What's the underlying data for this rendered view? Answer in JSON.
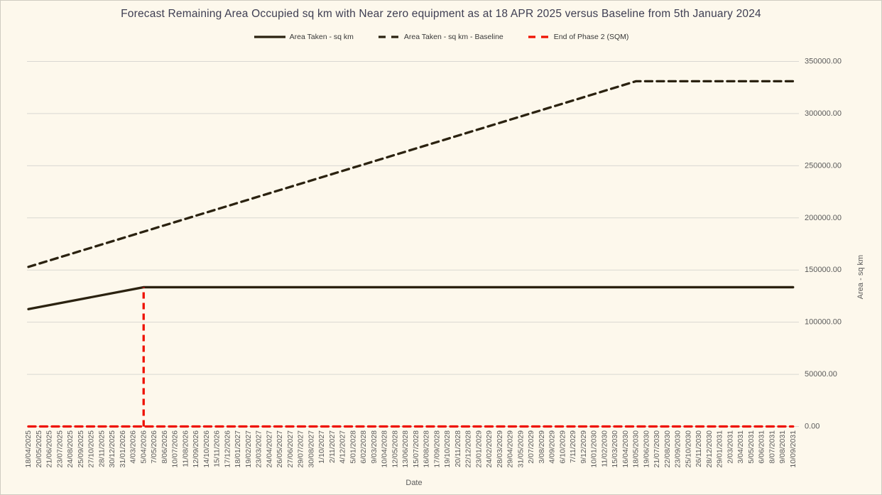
{
  "window": {
    "background": "#fdf8ec",
    "border_color": "#cfccc2"
  },
  "chart": {
    "title": "Forecast Remaining Area Occupied sq km with Near zero equipment as at 18 APR 2025 versus Baseline from 5th January 2024",
    "x_axis_title": "Date",
    "y_axis_title": "Area - sq km",
    "legend": [
      {
        "label": "Area Taken - sq km",
        "style": "solid",
        "color": "#2b2210"
      },
      {
        "label": "Area Taken - sq km - Baseline",
        "style": "dashed",
        "color": "#2b2210"
      },
      {
        "label": "End of Phase 2 (SQM)",
        "style": "dashed",
        "color": "#ee1100"
      }
    ],
    "colors": {
      "gridline": "#d9d7d2",
      "tick_text": "#5a5a5a",
      "title_text": "#3e3e52"
    }
  },
  "chart_data": {
    "type": "line",
    "title": "Forecast Remaining Area Occupied sq km with Near zero equipment as at 18 APR 2025 versus Baseline from 5th January 2024",
    "xlabel": "Date",
    "ylabel": "Area - sq km",
    "ylim": [
      0,
      350000
    ],
    "y_ticks": [
      0,
      50000,
      100000,
      150000,
      200000,
      250000,
      300000,
      350000
    ],
    "y_tick_labels": [
      "0.00",
      "50000.00",
      "100000.00",
      "150000.00",
      "200000.00",
      "250000.00",
      "300000.00",
      "350000.00"
    ],
    "grid": "horizontal",
    "legend_position": "top",
    "categories": [
      "18/04/2025",
      "20/05/2025",
      "21/06/2025",
      "23/07/2025",
      "24/08/2025",
      "25/09/2025",
      "27/10/2025",
      "28/11/2025",
      "30/12/2025",
      "31/01/2026",
      "4/03/2026",
      "5/04/2026",
      "7/05/2026",
      "8/06/2026",
      "10/07/2026",
      "11/08/2026",
      "12/09/2026",
      "14/10/2026",
      "15/11/2026",
      "17/12/2026",
      "18/01/2027",
      "19/02/2027",
      "23/03/2027",
      "24/04/2027",
      "26/05/2027",
      "27/06/2027",
      "29/07/2027",
      "30/08/2027",
      "1/10/2027",
      "2/11/2027",
      "4/12/2027",
      "5/01/2028",
      "6/02/2028",
      "9/03/2028",
      "10/04/2028",
      "12/05/2028",
      "13/06/2028",
      "15/07/2028",
      "16/08/2028",
      "17/09/2028",
      "19/10/2028",
      "20/11/2028",
      "22/12/2028",
      "23/01/2029",
      "24/02/2029",
      "28/03/2029",
      "29/04/2029",
      "31/05/2029",
      "2/07/2029",
      "3/08/2029",
      "4/09/2029",
      "6/10/2029",
      "7/11/2029",
      "9/12/2029",
      "10/01/2030",
      "11/02/2030",
      "15/03/2030",
      "16/04/2030",
      "18/05/2030",
      "19/06/2030",
      "21/07/2030",
      "22/08/2030",
      "23/09/2030",
      "25/10/2030",
      "26/11/2030",
      "28/12/2030",
      "29/01/2031",
      "2/03/2031",
      "3/04/2031",
      "5/05/2031",
      "6/06/2031",
      "8/07/2031",
      "9/08/2031",
      "10/09/2031"
    ],
    "series": [
      {
        "name": "Area Taken - sq km",
        "line": "solid",
        "color": "#2b2210",
        "interpolation": "linear-between-vertices",
        "vertices": [
          [
            "18/04/2025",
            112500
          ],
          [
            "5/04/2026",
            133500
          ],
          [
            "10/09/2031",
            133500
          ]
        ]
      },
      {
        "name": "Area Taken - sq km - Baseline",
        "line": "dashed",
        "color": "#2b2210",
        "interpolation": "linear-between-vertices",
        "vertices": [
          [
            "18/04/2025",
            153000
          ],
          [
            "18/05/2030",
            331000
          ],
          [
            "10/09/2031",
            331000
          ]
        ]
      },
      {
        "name": "End of Phase 2 (SQM)",
        "line": "dashed",
        "color": "#ee1100",
        "interpolation": "linear-between-vertices",
        "vertices": [
          [
            "18/04/2025",
            0
          ],
          [
            "10/09/2031",
            0
          ]
        ],
        "vertical_marker": {
          "date": "5/04/2026",
          "from": 0,
          "to": 133500
        }
      }
    ]
  }
}
